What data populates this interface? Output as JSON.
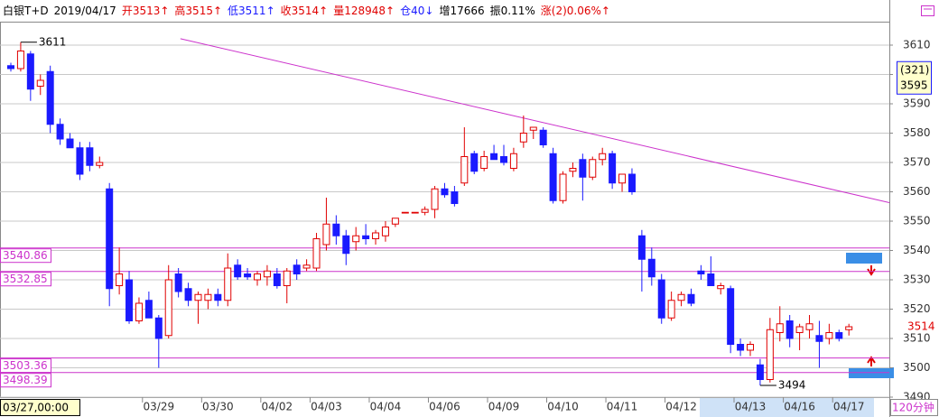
{
  "header": {
    "items": [
      {
        "text": "白银T+D",
        "color": "#000000"
      },
      {
        "text": "2019/04/17",
        "color": "#000000"
      },
      {
        "text": "开3513↑",
        "color": "#e00000"
      },
      {
        "text": "高3515↑",
        "color": "#e00000"
      },
      {
        "text": "低3511↑",
        "color": "#1a1aff"
      },
      {
        "text": "收3514↑",
        "color": "#e00000"
      },
      {
        "text": "量128948↑",
        "color": "#e00000"
      },
      {
        "text": "仓40↓",
        "color": "#1a1aff"
      },
      {
        "text": "增17666",
        "color": "#000000"
      },
      {
        "text": "振0.11%",
        "color": "#000000"
      },
      {
        "text": "涨(2)0.06%↑",
        "color": "#e00000"
      }
    ]
  },
  "chart_data": {
    "type": "candlestick",
    "up_color": "#e00000",
    "down_color": "#1a1aff",
    "ylim": [
      3490,
      3618
    ],
    "yticks": [
      3490,
      3500,
      3510,
      3520,
      3530,
      3540,
      3550,
      3560,
      3570,
      3580,
      3590,
      3600,
      3610
    ],
    "grid": true,
    "categories": [
      "03/27,00:00",
      null,
      null,
      null,
      null,
      null,
      null,
      null,
      null,
      null,
      null,
      null,
      null,
      null,
      null,
      "03/29",
      null,
      null,
      null,
      null,
      null,
      "03/30",
      null,
      null,
      null,
      null,
      null,
      "04/02",
      null,
      null,
      null,
      null,
      "04/03",
      null,
      null,
      null,
      null,
      null,
      "04/04",
      null,
      null,
      null,
      null,
      null,
      "04/06",
      null,
      null,
      null,
      null,
      null,
      "04/09",
      null,
      null,
      null,
      null,
      null,
      "04/10",
      null,
      null,
      null,
      null,
      null,
      "04/11",
      null,
      null,
      null,
      null,
      null,
      "04/12",
      null,
      null,
      null,
      null,
      null,
      null,
      "04/13",
      null,
      null,
      null,
      null,
      "04/16",
      null,
      null,
      null,
      null,
      "04/17"
    ],
    "ohlc": [
      [
        3603,
        3604,
        3601,
        3602
      ],
      [
        3602,
        3611,
        3601,
        3608
      ],
      [
        3607,
        3608,
        3591,
        3595
      ],
      [
        3596,
        3600,
        3593,
        3598
      ],
      [
        3601,
        3603,
        3580,
        3583
      ],
      [
        3583,
        3585,
        3576,
        3578
      ],
      [
        3578,
        3580,
        3575,
        3575
      ],
      [
        3575,
        3577,
        3564,
        3566
      ],
      [
        3575,
        3577,
        3567,
        3569
      ],
      [
        3569,
        3572,
        3568,
        3570
      ],
      [
        3561,
        3563,
        3521,
        3527
      ],
      [
        3528,
        3541,
        3525,
        3532
      ],
      [
        3530,
        3533,
        3515,
        3516
      ],
      [
        3516,
        3524,
        3515,
        3522
      ],
      [
        3523,
        3526,
        3517,
        3517
      ],
      [
        3517,
        3518,
        3500,
        3510
      ],
      [
        3511,
        3535,
        3510,
        3530
      ],
      [
        3532,
        3534,
        3524,
        3526
      ],
      [
        3527,
        3529,
        3521,
        3523
      ],
      [
        3523,
        3526,
        3515,
        3525
      ],
      [
        3523,
        3527,
        3520,
        3525
      ],
      [
        3525,
        3527,
        3521,
        3523
      ],
      [
        3523,
        3539,
        3521,
        3534
      ],
      [
        3535,
        3537,
        3530,
        3531
      ],
      [
        3532,
        3534,
        3530,
        3531
      ],
      [
        3530,
        3533,
        3528,
        3532
      ],
      [
        3531,
        3535,
        3528,
        3533
      ],
      [
        3532,
        3534,
        3527,
        3528
      ],
      [
        3528,
        3534,
        3522,
        3533
      ],
      [
        3535,
        3537,
        3530,
        3532
      ],
      [
        3534,
        3537,
        3533,
        3535
      ],
      [
        3534,
        3546,
        3533,
        3544
      ],
      [
        3542,
        3558,
        3540,
        3549
      ],
      [
        3549,
        3552,
        3542,
        3545
      ],
      [
        3545,
        3547,
        3535,
        3539
      ],
      [
        3543,
        3548,
        3540,
        3545
      ],
      [
        3545,
        3549,
        3542,
        3544
      ],
      [
        3544,
        3547,
        3542,
        3546
      ],
      [
        3545,
        3550,
        3543,
        3548
      ],
      [
        3549,
        3551,
        3548,
        3551
      ],
      [
        3553,
        3553,
        3553,
        3553
      ],
      [
        3553,
        3553,
        3553,
        3553
      ],
      [
        3553,
        3555,
        3552,
        3554
      ],
      [
        3554,
        3562,
        3551,
        3561
      ],
      [
        3561,
        3563,
        3558,
        3559
      ],
      [
        3560,
        3562,
        3555,
        3556
      ],
      [
        3563,
        3582,
        3562,
        3572
      ],
      [
        3573,
        3574,
        3566,
        3567
      ],
      [
        3568,
        3574,
        3567,
        3572
      ],
      [
        3573,
        3576,
        3571,
        3571
      ],
      [
        3572,
        3576,
        3569,
        3570
      ],
      [
        3568,
        3575,
        3567,
        3573
      ],
      [
        3577,
        3586,
        3575,
        3580
      ],
      [
        3581,
        3582,
        3578,
        3582
      ],
      [
        3581,
        3582,
        3575,
        3576
      ],
      [
        3573,
        3575,
        3556,
        3557
      ],
      [
        3557,
        3567,
        3556,
        3566
      ],
      [
        3567,
        3570,
        3565,
        3568
      ],
      [
        3571,
        3573,
        3557,
        3565
      ],
      [
        3565,
        3572,
        3564,
        3571
      ],
      [
        3571,
        3575,
        3569,
        3573
      ],
      [
        3573,
        3574,
        3561,
        3563
      ],
      [
        3563,
        3566,
        3560,
        3566
      ],
      [
        3566,
        3568,
        3559,
        3560
      ],
      [
        3545,
        3547,
        3526,
        3537
      ],
      [
        3537,
        3541,
        3528,
        3531
      ],
      [
        3530,
        3532,
        3515,
        3517
      ],
      [
        3517,
        3526,
        3516,
        3523
      ],
      [
        3523,
        3526,
        3521,
        3525
      ],
      [
        3525,
        3527,
        3521,
        3522
      ],
      [
        3533,
        3535,
        3530,
        3532
      ],
      [
        3532,
        3538,
        3528,
        3528
      ],
      [
        3527,
        3529,
        3525,
        3528
      ],
      [
        3527,
        3528,
        3505,
        3508
      ],
      [
        3508,
        3510,
        3504,
        3506
      ],
      [
        3506,
        3509,
        3504,
        3508
      ],
      [
        3501,
        3503,
        3494,
        3496
      ],
      [
        3496,
        3517,
        3495,
        3513
      ],
      [
        3512,
        3521,
        3509,
        3515
      ],
      [
        3516,
        3518,
        3507,
        3510
      ],
      [
        3512,
        3515,
        3506,
        3514
      ],
      [
        3513,
        3518,
        3510,
        3515
      ],
      [
        3511,
        3516,
        3500,
        3509
      ],
      [
        3510,
        3515,
        3508,
        3512
      ],
      [
        3512,
        3513,
        3509,
        3510
      ],
      [
        3513,
        3515,
        3511,
        3514
      ]
    ],
    "levels": [
      3540.86,
      3532.85,
      3503.36,
      3498.39
    ],
    "level_color": "#cc33cc",
    "trendline": {
      "x": [
        17.2,
        89.1
      ],
      "y": [
        3612.2,
        3556.3
      ],
      "color": "#cc33cc"
    },
    "high_label": 3611,
    "low_label": 3494,
    "current_price": 3514,
    "cursor": {
      "count": "(321)",
      "price": 3595
    },
    "period": "120分钟"
  }
}
